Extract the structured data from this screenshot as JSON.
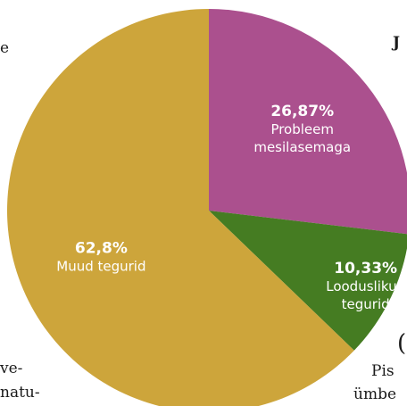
{
  "chart_data": {
    "type": "pie",
    "slices": [
      {
        "value": 26.87,
        "percent_label": "26,87%",
        "label_lines": [
          "Probleem",
          "mesilasemaga"
        ],
        "color": "#ab508e"
      },
      {
        "value": 10.33,
        "percent_label": "10,33%",
        "label_lines": [
          "Looduslikud",
          "tegurid"
        ],
        "color": "#457c22"
      },
      {
        "value": 62.8,
        "percent_label": "62,8%",
        "label_lines": [
          "Muud tegurid"
        ],
        "color": "#cda53b"
      }
    ],
    "start_angle_deg": 0,
    "direction": "clockwise"
  },
  "background_text": {
    "top_left": "e",
    "top_right": "J",
    "bottom_left_1": "ve-",
    "bottom_left_2": "natu-",
    "bottom_right_1": "Pis",
    "bottom_right_2": "ümbe",
    "bottom_right_paren": "("
  }
}
